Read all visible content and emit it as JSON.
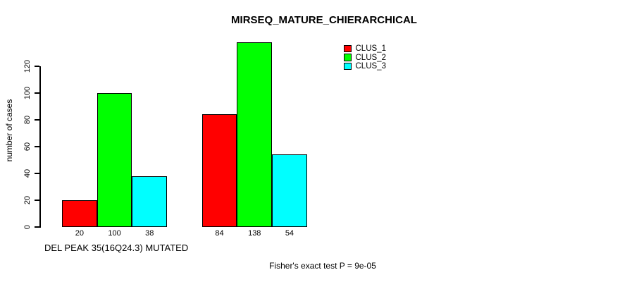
{
  "chart_data": {
    "type": "bar",
    "title": "MIRSEQ_MATURE_CHIERARCHICAL",
    "ylabel": "number of cases",
    "xlabel": "DEL PEAK 35(16Q24.3) MUTATED",
    "annotation": "Fisher's exact test P = 9e-05",
    "yticks": [
      0,
      20,
      40,
      60,
      80,
      100,
      120
    ],
    "ylim": [
      0,
      138
    ],
    "grid": false,
    "legend_position": "top-right",
    "bar_value_labels_shown": true,
    "groups_count": 2,
    "series": [
      {
        "name": "CLUS_1",
        "color": "#ff0000",
        "values": [
          20,
          84
        ]
      },
      {
        "name": "CLUS_2",
        "color": "#00ff00",
        "values": [
          100,
          138
        ]
      },
      {
        "name": "CLUS_3",
        "color": "#00ffff",
        "values": [
          38,
          54
        ]
      }
    ]
  }
}
